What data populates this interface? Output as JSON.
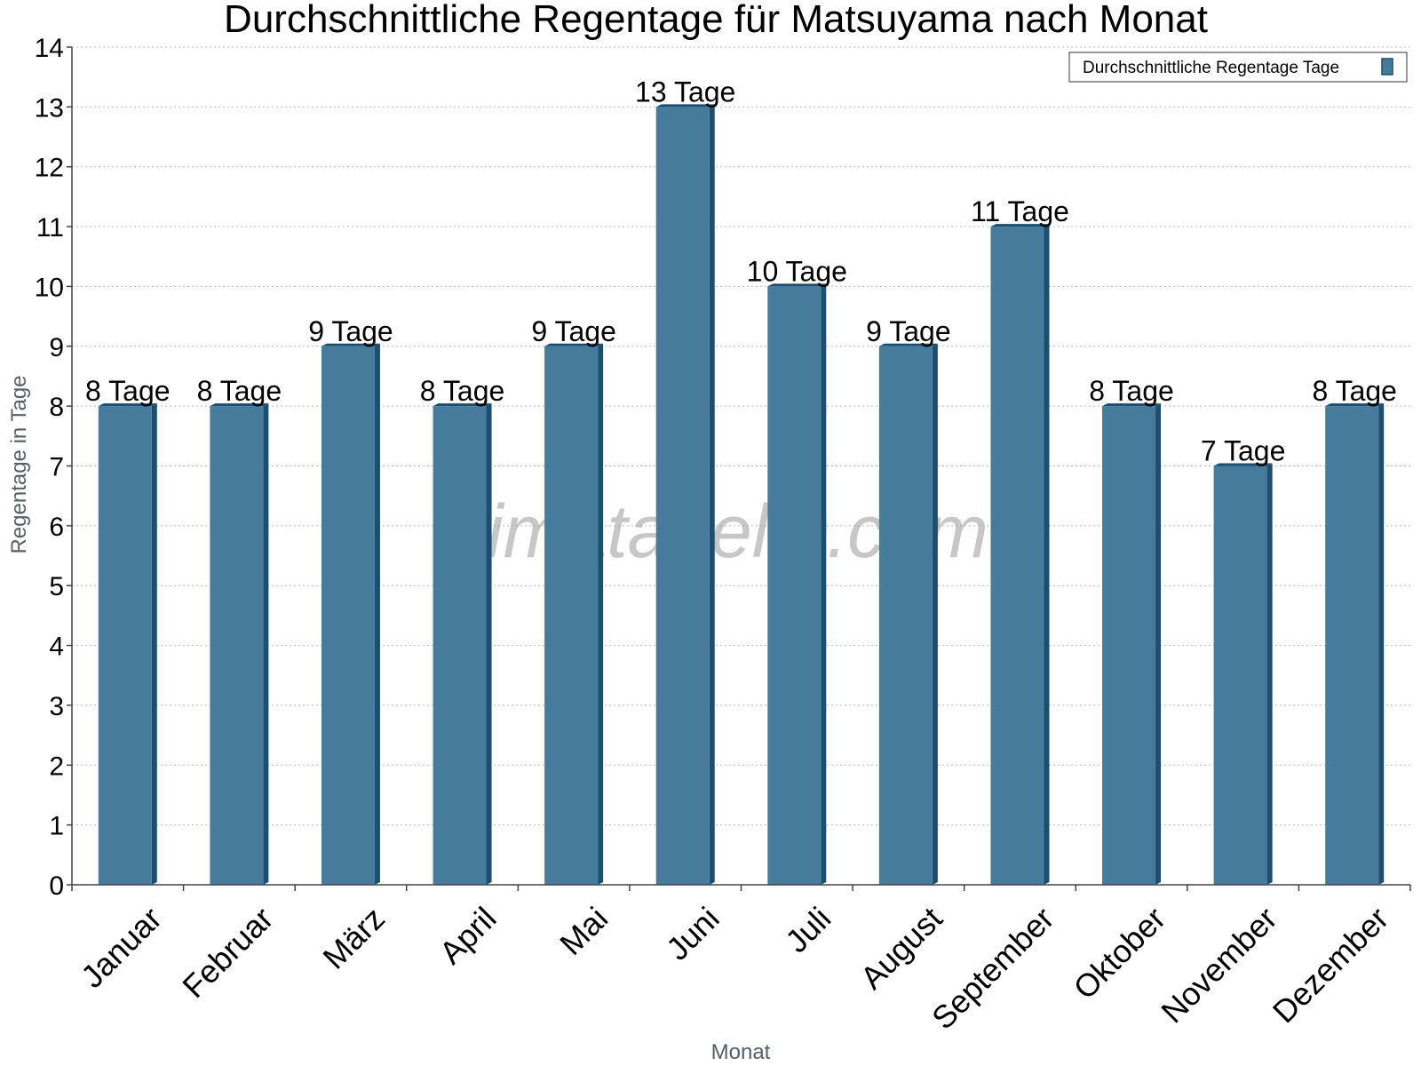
{
  "chart_data": {
    "type": "bar",
    "title": "Durchschnittliche Regentage für Matsuyama nach Monat",
    "xlabel": "Monat",
    "ylabel": "Regentage in Tage",
    "categories": [
      "Januar",
      "Februar",
      "März",
      "April",
      "Mai",
      "Juni",
      "Juli",
      "August",
      "September",
      "Oktober",
      "November",
      "Dezember"
    ],
    "series": [
      {
        "name": "Durchschnittliche Regentage Tage",
        "values": [
          8,
          8,
          9,
          8,
          9,
          13,
          10,
          9,
          11,
          8,
          7,
          8
        ],
        "data_labels": [
          "8 Tage",
          "8 Tage",
          "9 Tage",
          "8 Tage",
          "9 Tage",
          "13 Tage",
          "10 Tage",
          "9 Tage",
          "11 Tage",
          "8 Tage",
          "7 Tage",
          "8 Tage"
        ]
      }
    ],
    "ylim": [
      0,
      14
    ],
    "yticks": [
      0,
      1,
      2,
      3,
      4,
      5,
      6,
      7,
      8,
      9,
      10,
      11,
      12,
      13,
      14
    ],
    "grid": true,
    "legend_position": "top-right",
    "watermark": "klimatabelle.com",
    "colors": {
      "bar": "#467b9c",
      "bar_dark": "#1d4e6f",
      "grid": "#bbbbbb"
    }
  }
}
